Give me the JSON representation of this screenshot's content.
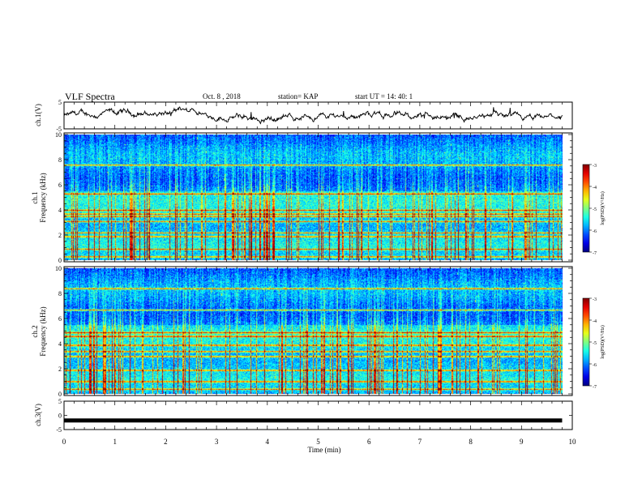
{
  "header": {
    "title": "VLF Spectra",
    "date": "Oct. 8 , 2018",
    "station": "station= KAP",
    "start": "start UT = 14: 40: 1"
  },
  "chart_data": [
    {
      "type": "line",
      "panel": "ch1-waveform",
      "ylabel": "ch.1(V)",
      "ylim": [
        -5,
        5
      ],
      "yticks": [
        "5",
        "-5"
      ],
      "xlim": [
        0,
        10
      ],
      "series_color": "#000000"
    },
    {
      "type": "heatmap",
      "panel": "ch1-spectrogram",
      "ylabel": "ch.1\nFrequency (kHz)",
      "ylim": [
        0,
        10
      ],
      "yticks": [
        "0",
        "2",
        "4",
        "6",
        "8",
        "10"
      ],
      "xlim": [
        0,
        10
      ],
      "data_extent_x": 9.8,
      "colorbar": {
        "label": "log(PSD)(V²/Hz)",
        "range": [
          -7,
          -3
        ],
        "ticks": [
          "-3",
          "-4",
          "-5",
          "-6",
          "-7"
        ]
      },
      "bands_khz": [
        0.3,
        0.9,
        1.9,
        2.2,
        3.1,
        3.5,
        3.7,
        4.0,
        5.3,
        7.6
      ]
    },
    {
      "type": "heatmap",
      "panel": "ch2-spectrogram",
      "ylabel": "ch.2\nFrequency (kHz)",
      "ylim": [
        0,
        10
      ],
      "yticks": [
        "0",
        "2",
        "4",
        "6",
        "8",
        "10"
      ],
      "xlim": [
        0,
        10
      ],
      "data_extent_x": 9.8,
      "colorbar": {
        "label": "log(PSD)(V²/Hz)",
        "range": [
          -7,
          -3
        ],
        "ticks": [
          "-3",
          "-4",
          "-5",
          "-6",
          "-7"
        ]
      },
      "bands_khz": [
        0.4,
        1.0,
        1.9,
        3.0,
        3.4,
        3.9,
        4.6,
        4.9,
        6.7,
        8.4
      ]
    },
    {
      "type": "line",
      "panel": "ch3-waveform",
      "ylabel": "ch.3(V)",
      "ylim": [
        -5,
        5
      ],
      "yticks": [
        "5",
        "0",
        "-5"
      ],
      "xlim": [
        0,
        10
      ],
      "constant_value": -1.8,
      "series_color": "#000000"
    }
  ],
  "xaxis": {
    "label": "Time (min)",
    "ticks": [
      "0",
      "1",
      "2",
      "3",
      "4",
      "5",
      "6",
      "7",
      "8",
      "9",
      "10"
    ]
  },
  "colors": {
    "background": "#ffffff",
    "axis": "#000000"
  }
}
